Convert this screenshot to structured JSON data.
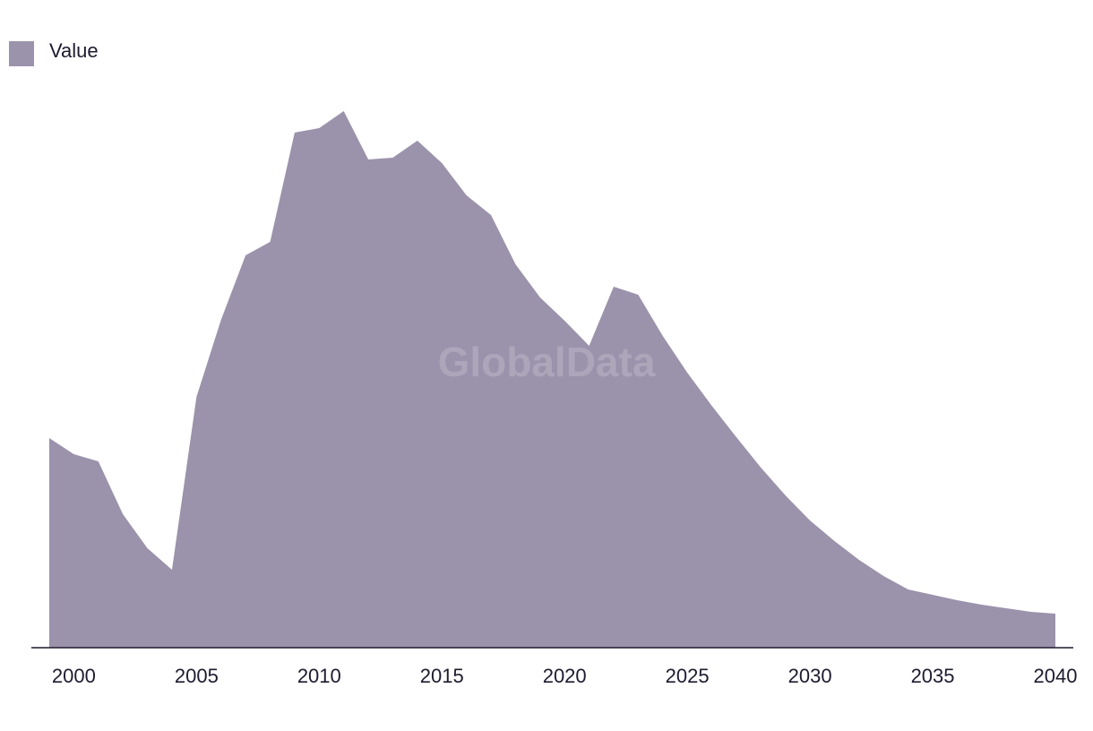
{
  "chart_data": {
    "type": "area",
    "watermark": "GlobalData",
    "x": [
      1999,
      2000,
      2001,
      2002,
      2003,
      2004,
      2005,
      2006,
      2007,
      2008,
      2009,
      2010,
      2011,
      2012,
      2013,
      2014,
      2015,
      2016,
      2017,
      2018,
      2019,
      2020,
      2021,
      2022,
      2023,
      2024,
      2025,
      2026,
      2027,
      2028,
      2029,
      2030,
      2031,
      2032,
      2033,
      2034,
      2035,
      2036,
      2037,
      2038,
      2039,
      2040
    ],
    "series": [
      {
        "name": "Value",
        "color": "#9b92ab",
        "values": [
          234,
          216,
          208,
          149,
          111,
          87,
          280,
          366,
          438,
          453,
          575,
          580,
          599,
          545,
          547,
          566,
          541,
          505,
          483,
          428,
          391,
          365,
          337,
          403,
          394,
          348,
          307,
          270,
          235,
          201,
          170,
          142,
          119,
          98,
          80,
          65,
          59,
          53,
          48,
          44,
          40,
          38
        ]
      }
    ],
    "xlim": [
      1999,
      2040
    ],
    "xticks": [
      2000,
      2005,
      2010,
      2015,
      2020,
      2025,
      2030,
      2035,
      2040
    ],
    "ylim": [
      0,
      640
    ],
    "legend": "top-left"
  }
}
